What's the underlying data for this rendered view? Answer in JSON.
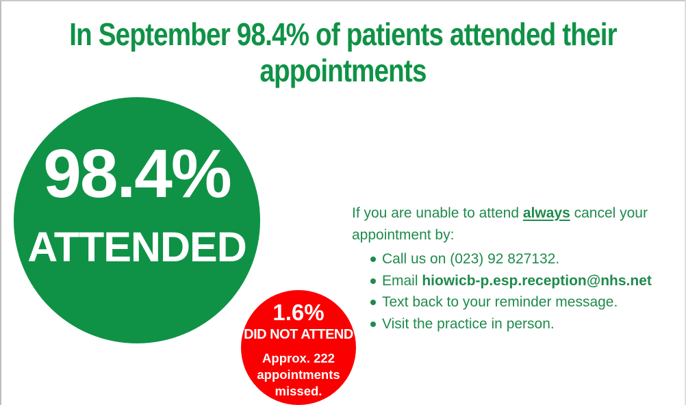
{
  "colors": {
    "green": "#0f9246",
    "text_green": "#1f8a4c",
    "red": "#fa0000",
    "white": "#ffffff",
    "border_gray": "#c9c9c9"
  },
  "title": {
    "line1": "In September 98.4% of patients attended their",
    "line2": "appointments"
  },
  "attended_circle": {
    "percent": "98.4%",
    "label": "ATTENDED"
  },
  "dna_circle": {
    "percent": "1.6%",
    "label": "DID NOT ATTEND",
    "detail": "Approx. 222 appointments missed."
  },
  "info": {
    "intro_prefix": "If you are unable to attend ",
    "intro_emphasis": "always",
    "intro_suffix": " cancel your appointment by:",
    "bullets": [
      {
        "text": "Call us on (023) 92 827132.",
        "bold": ""
      },
      {
        "text": "Email ",
        "bold": "hiowicb-p.esp.reception@nhs.net"
      },
      {
        "text": "Text back to your reminder message.",
        "bold": ""
      },
      {
        "text": "Visit the practice in person.",
        "bold": ""
      }
    ]
  }
}
